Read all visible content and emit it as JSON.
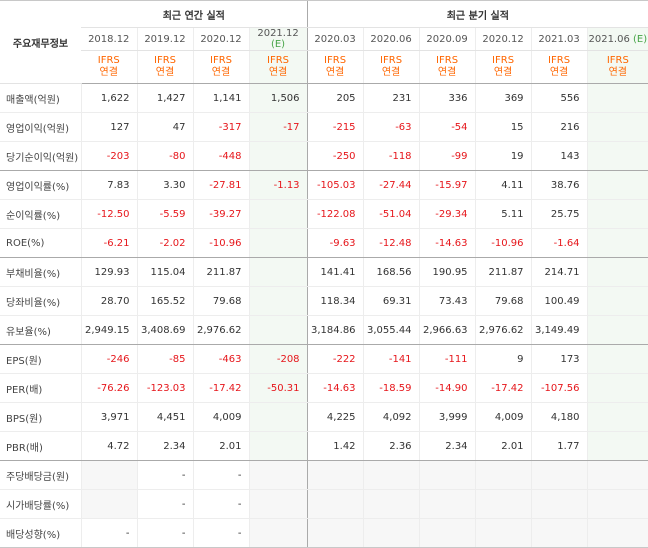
{
  "header": {
    "row_label": "주요재무정보",
    "annual_title": "최근 연간 실적",
    "quarter_title": "최근 분기 실적"
  },
  "periods": [
    {
      "label": "2018.12",
      "estimate": ""
    },
    {
      "label": "2019.12",
      "estimate": ""
    },
    {
      "label": "2020.12",
      "estimate": ""
    },
    {
      "label": "2021.12",
      "estimate": "(E)"
    },
    {
      "label": "2020.03",
      "estimate": ""
    },
    {
      "label": "2020.06",
      "estimate": ""
    },
    {
      "label": "2020.09",
      "estimate": ""
    },
    {
      "label": "2020.12",
      "estimate": ""
    },
    {
      "label": "2021.03",
      "estimate": ""
    },
    {
      "label": "2021.06",
      "estimate": "(E)"
    }
  ],
  "ifrs": {
    "line1": "IFRS",
    "line2": "연결"
  },
  "rows": [
    {
      "label": "매출액(억원)",
      "values": [
        "1,622",
        "1,427",
        "1,141",
        "1,506",
        "205",
        "231",
        "336",
        "369",
        "556",
        ""
      ]
    },
    {
      "label": "영업이익(억원)",
      "values": [
        "127",
        "47",
        "-317",
        "-17",
        "-215",
        "-63",
        "-54",
        "15",
        "216",
        ""
      ]
    },
    {
      "label": "당기순이익(억원)",
      "values": [
        "-203",
        "-80",
        "-448",
        "",
        "-250",
        "-118",
        "-99",
        "19",
        "143",
        ""
      ]
    },
    {
      "label": "영업이익률(%)",
      "values": [
        "7.83",
        "3.30",
        "-27.81",
        "-1.13",
        "-105.03",
        "-27.44",
        "-15.97",
        "4.11",
        "38.76",
        ""
      ]
    },
    {
      "label": "순이익률(%)",
      "values": [
        "-12.50",
        "-5.59",
        "-39.27",
        "",
        "-122.08",
        "-51.04",
        "-29.34",
        "5.11",
        "25.75",
        ""
      ]
    },
    {
      "label": "ROE(%)",
      "values": [
        "-6.21",
        "-2.02",
        "-10.96",
        "",
        "-9.63",
        "-12.48",
        "-14.63",
        "-10.96",
        "-1.64",
        ""
      ]
    },
    {
      "label": "부채비율(%)",
      "values": [
        "129.93",
        "115.04",
        "211.87",
        "",
        "141.41",
        "168.56",
        "190.95",
        "211.87",
        "214.71",
        ""
      ]
    },
    {
      "label": "당좌비율(%)",
      "values": [
        "28.70",
        "165.52",
        "79.68",
        "",
        "118.34",
        "69.31",
        "73.43",
        "79.68",
        "100.49",
        ""
      ]
    },
    {
      "label": "유보율(%)",
      "values": [
        "2,949.15",
        "3,408.69",
        "2,976.62",
        "",
        "3,184.86",
        "3,055.44",
        "2,966.63",
        "2,976.62",
        "3,149.49",
        ""
      ]
    },
    {
      "label": "EPS(원)",
      "values": [
        "-246",
        "-85",
        "-463",
        "-208",
        "-222",
        "-141",
        "-111",
        "9",
        "173",
        ""
      ]
    },
    {
      "label": "PER(배)",
      "values": [
        "-76.26",
        "-123.03",
        "-17.42",
        "-50.31",
        "-14.63",
        "-18.59",
        "-14.90",
        "-17.42",
        "-107.56",
        ""
      ]
    },
    {
      "label": "BPS(원)",
      "values": [
        "3,971",
        "4,451",
        "4,009",
        "",
        "4,225",
        "4,092",
        "3,999",
        "4,009",
        "4,180",
        ""
      ]
    },
    {
      "label": "PBR(배)",
      "values": [
        "4.72",
        "2.34",
        "2.01",
        "",
        "1.42",
        "2.36",
        "2.34",
        "2.01",
        "1.77",
        ""
      ]
    },
    {
      "label": "주당배당금(원)",
      "values": [
        "",
        "-",
        "-",
        "",
        "",
        "",
        "",
        "",
        "",
        ""
      ]
    },
    {
      "label": "시가배당률(%)",
      "values": [
        "",
        "-",
        "-",
        "",
        "",
        "",
        "",
        "",
        "",
        ""
      ]
    },
    {
      "label": "배당성향(%)",
      "values": [
        "-",
        "-",
        "-",
        "",
        "",
        "",
        "",
        "",
        "",
        ""
      ]
    }
  ],
  "colors": {
    "negative": "#e6161b",
    "ifrs": "#ff6600",
    "estimate_bg": "#f3f9f3",
    "empty_bg": "#f7f7f7"
  }
}
